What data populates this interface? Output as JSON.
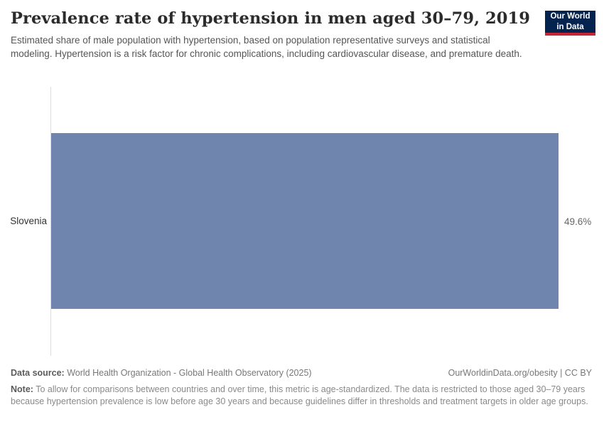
{
  "header": {
    "title": "Prevalence rate of hypertension in men aged 30–79, 2019",
    "subtitle": "Estimated share of male population with hypertension, based on population representative surveys and statistical modeling. Hypertension is a risk factor for chronic complications, including cardiovascular disease, and premature death.",
    "logo": {
      "line1": "Our World",
      "line2": "in Data",
      "bg_color": "#04234e",
      "accent_color": "#c72435"
    }
  },
  "chart_data": {
    "type": "bar",
    "orientation": "horizontal",
    "categories": [
      "Slovenia"
    ],
    "values": [
      49.6
    ],
    "value_labels": [
      "49.6%"
    ],
    "unit": "%",
    "xlim": [
      0,
      49.6
    ],
    "bar_color": "#6f85ad",
    "grid": false,
    "legend": "none",
    "title": "Prevalence rate of hypertension in men aged 30–79, 2019",
    "xlabel": "",
    "ylabel": ""
  },
  "footer": {
    "data_source_label": "Data source:",
    "data_source_text": " World Health Organization - Global Health Observatory (2025)",
    "attribution": "OurWorldinData.org/obesity | CC BY",
    "note_label": "Note:",
    "note_text": " To allow for comparisons between countries and over time, this metric is age-standardized. The data is restricted to those aged 30–79 years because hypertension prevalence is low before age 30 years and because guidelines differ in thresholds and treatment targets in older age groups."
  }
}
